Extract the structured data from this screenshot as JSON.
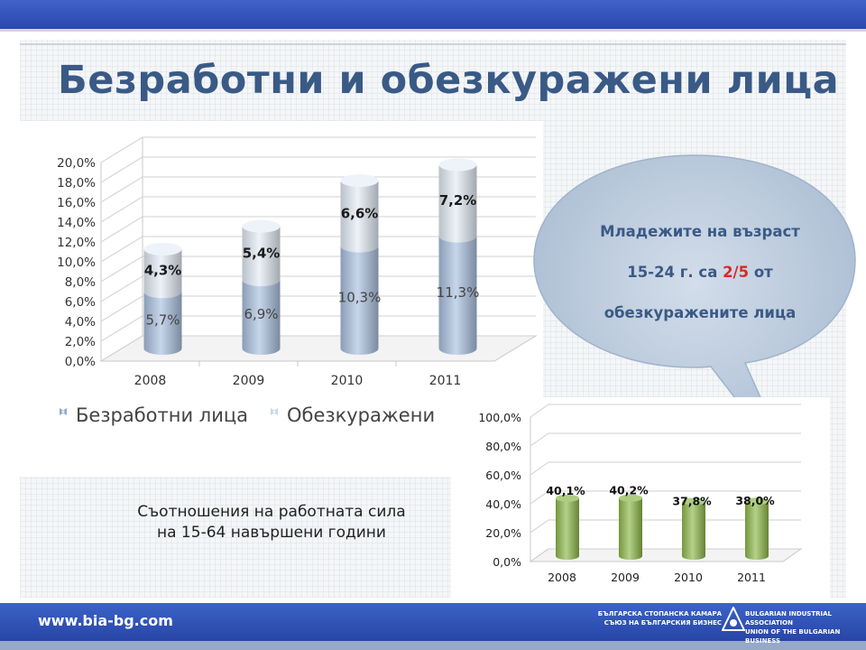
{
  "slide": {
    "title": "Безработни и обезкуражени лица",
    "caption_line1": "Съотношения на работната сила",
    "caption_line2": "на 15-64 навършени години",
    "bubble": {
      "line1": "Младежите на възраст",
      "line2_pre": "15-24 г.  са ",
      "line2_highlight": "2/5",
      "line2_post": " от",
      "line3": "обезкуражените лица"
    },
    "footer": {
      "url": "www.bia-bg.com",
      "logo_left_line1": "БЪЛГАРСКА СТОПАНСКА КАМАРА",
      "logo_left_line2": "СЪЮЗ НА БЪЛГАРСКИЯ БИЗНЕС",
      "logo_right_line1": "BULGARIAN INDUSTRIAL ASSOCIATION",
      "logo_right_line2": "UNION OF THE BULGARIAN BUSINESS"
    },
    "colors": {
      "title": "#3a5a86",
      "band": "#2f52b8",
      "highlight": "#d42a2a",
      "bubble": "#b9c8d9"
    }
  },
  "chart_data": [
    {
      "type": "bar",
      "stacked": true,
      "style": "3d-cylinder",
      "categories": [
        "2008",
        "2009",
        "2010",
        "2011"
      ],
      "series": [
        {
          "name": "Безработни лица",
          "values": [
            5.7,
            6.9,
            10.3,
            11.3
          ],
          "labels": [
            "5,7%",
            "6,9%",
            "10,3%",
            "11,3%"
          ],
          "color": "#a9c0de"
        },
        {
          "name": "Обезкуражени",
          "values": [
            4.3,
            5.4,
            6.6,
            7.2
          ],
          "labels": [
            "4,3%",
            "5,4%",
            "6,6%",
            "7,2%"
          ],
          "color": "#e3ebf5"
        }
      ],
      "yticks": [
        "0,0%",
        "2,0%",
        "4,0%",
        "6,0%",
        "8,0%",
        "10,0%",
        "12,0%",
        "14,0%",
        "16,0%",
        "18,0%",
        "20,0%"
      ],
      "ylim": [
        0,
        20
      ],
      "grid": true,
      "legend": "bottom"
    },
    {
      "type": "bar",
      "style": "3d-cylinder",
      "categories": [
        "2008",
        "2009",
        "2010",
        "2011"
      ],
      "values": [
        40.1,
        40.2,
        37.8,
        38.0
      ],
      "labels": [
        "40,1%",
        "40,2%",
        "37,8%",
        "38,0%"
      ],
      "color": "#8db84a",
      "yticks": [
        "0,0%",
        "20,0%",
        "40,0%",
        "60,0%",
        "80,0%",
        "100,0%"
      ],
      "ylim": [
        0,
        100
      ],
      "grid": true
    }
  ]
}
